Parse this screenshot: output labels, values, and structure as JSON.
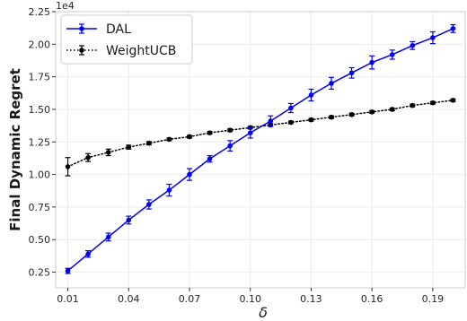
{
  "chart_data": {
    "type": "line",
    "ylabel": "Final Dynamic Regret",
    "xlabel": "δ",
    "y_exponent": "1e4",
    "xlim": [
      0.004,
      0.206
    ],
    "ylim": [
      0.13,
      2.25
    ],
    "x_ticks": [
      0.01,
      0.04,
      0.07,
      0.1,
      0.13,
      0.16,
      0.19
    ],
    "x_tick_labels": [
      "0.01",
      "0.04",
      "0.07",
      "0.10",
      "0.13",
      "0.16",
      "0.19"
    ],
    "y_ticks": [
      0.25,
      0.5,
      0.75,
      1.0,
      1.25,
      1.5,
      1.75,
      2.0,
      2.25
    ],
    "y_tick_labels": [
      "0.25",
      "0.50",
      "0.75",
      "1.00",
      "1.25",
      "1.50",
      "1.75",
      "2.00",
      "2.25"
    ],
    "grid": true,
    "legend_position": "top-left",
    "x": [
      0.01,
      0.02,
      0.03,
      0.04,
      0.05,
      0.06,
      0.07,
      0.08,
      0.09,
      0.1,
      0.11,
      0.12,
      0.13,
      0.14,
      0.15,
      0.16,
      0.17,
      0.18,
      0.19,
      0.2
    ],
    "series": [
      {
        "name": "DAL",
        "color": "#0000ee",
        "linestyle": "solid",
        "values": [
          0.26,
          0.39,
          0.52,
          0.65,
          0.77,
          0.88,
          1.0,
          1.12,
          1.22,
          1.32,
          1.41,
          1.51,
          1.61,
          1.7,
          1.78,
          1.86,
          1.92,
          1.99,
          2.05,
          2.12
        ],
        "errors": [
          0.02,
          0.025,
          0.03,
          0.03,
          0.035,
          0.045,
          0.045,
          0.025,
          0.04,
          0.04,
          0.04,
          0.035,
          0.045,
          0.045,
          0.04,
          0.05,
          0.035,
          0.03,
          0.045,
          0.03
        ]
      },
      {
        "name": "WeightUCB",
        "color": "#000000",
        "linestyle": "dotted",
        "values": [
          1.06,
          1.13,
          1.17,
          1.21,
          1.24,
          1.27,
          1.29,
          1.32,
          1.34,
          1.36,
          1.38,
          1.4,
          1.42,
          1.44,
          1.46,
          1.48,
          1.5,
          1.53,
          1.55,
          1.57
        ],
        "errors": [
          0.07,
          0.03,
          0.025,
          0.015,
          0.012,
          0.01,
          0.01,
          0.01,
          0.01,
          0.01,
          0.01,
          0.01,
          0.01,
          0.01,
          0.01,
          0.01,
          0.01,
          0.01,
          0.01,
          0.01
        ]
      }
    ]
  }
}
